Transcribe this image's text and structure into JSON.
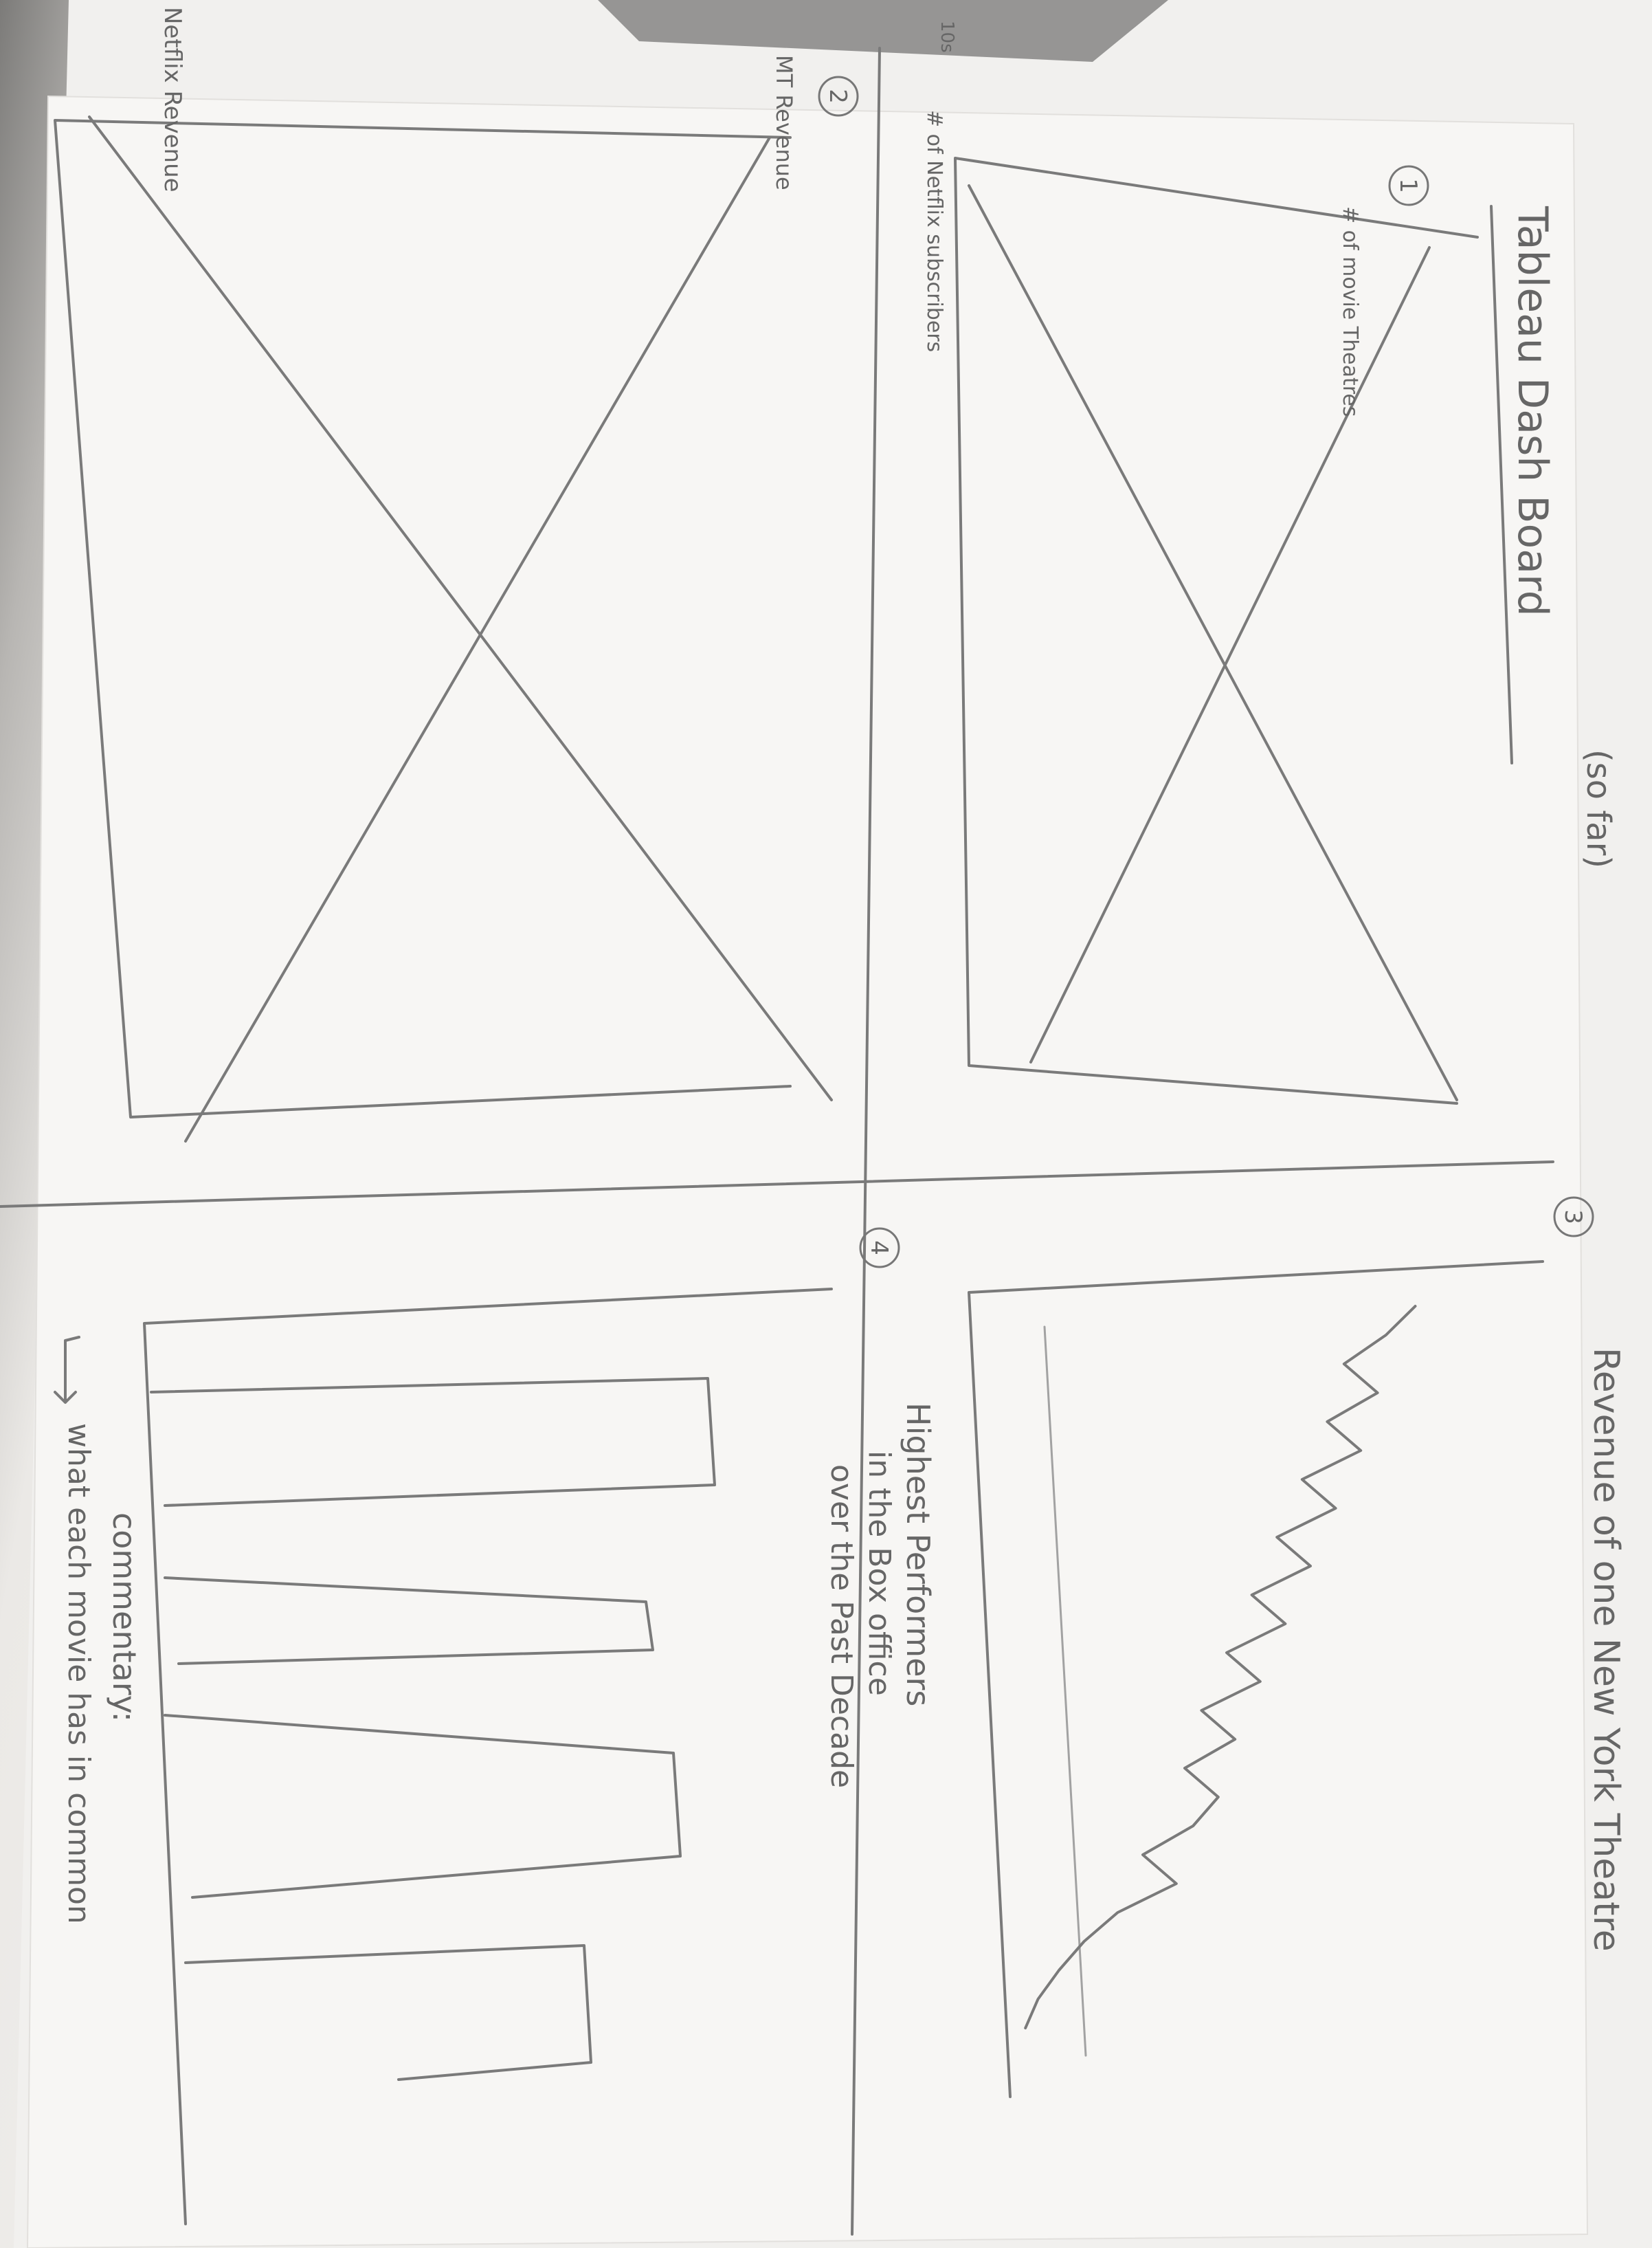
{
  "sheet": {
    "title": "Tableau Dash Board",
    "title_note": "(so far)",
    "panels": [
      {
        "number": "1",
        "y_axis_label": "# of movie Theatres",
        "x_axis_label": "# of Netflix subscribers",
        "placeholder": "X"
      },
      {
        "number": "2",
        "y_axis_label": "MT Revenue",
        "x_axis_label": "Netflix Revenue",
        "placeholder": "X"
      },
      {
        "number": "3",
        "title": "Revenue of one New York Theatre"
      },
      {
        "number": "4",
        "title_lines": [
          "Highest Performers",
          "in the Box office",
          "over the Past Decade"
        ],
        "commentary_label": "commentary:",
        "commentary_text": "what each movie has in common"
      }
    ],
    "page_edge_label": "10s"
  },
  "chart_data": {
    "type": "line",
    "title": "Revenue of one New York Theatre",
    "x": [
      0,
      1,
      2,
      3,
      4,
      5,
      6,
      7,
      8,
      9,
      10,
      11,
      12,
      13,
      14,
      15,
      16,
      17,
      18,
      19,
      20,
      21,
      22,
      23,
      24,
      25
    ],
    "values": [
      95,
      88,
      78,
      86,
      74,
      82,
      68,
      76,
      62,
      70,
      56,
      64,
      50,
      58,
      44,
      52,
      40,
      48,
      42,
      30,
      38,
      24,
      16,
      10,
      5,
      2
    ],
    "ylim": [
      0,
      100
    ],
    "grid": false
  }
}
